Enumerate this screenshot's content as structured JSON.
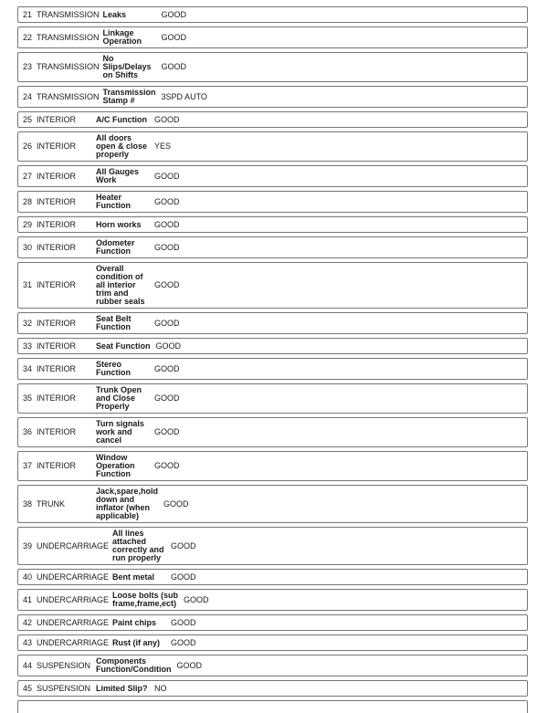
{
  "colors": {
    "border": "#767676",
    "text": "#1a1a1a",
    "background": "#ffffff"
  },
  "table": {
    "rows": [
      {
        "num": "21",
        "category": "TRANSMISSION",
        "item_lines": [
          "Leaks"
        ],
        "value": "GOOD"
      },
      {
        "num": "22",
        "category": "TRANSMISSION",
        "item_lines": [
          "Linkage",
          "Operation"
        ],
        "value": "GOOD"
      },
      {
        "num": "23",
        "category": "TRANSMISSION",
        "item_lines": [
          "No",
          "Slips/Delays",
          "on Shifts"
        ],
        "value": "GOOD"
      },
      {
        "num": "24",
        "category": "TRANSMISSION",
        "item_lines": [
          "Transmission",
          "Stamp #"
        ],
        "value": "3SPD AUTO"
      },
      {
        "num": "25",
        "category": "INTERIOR",
        "item_lines": [
          "A/C Function"
        ],
        "value": "GOOD"
      },
      {
        "num": "26",
        "category": "INTERIOR",
        "item_lines": [
          "All doors",
          "open & close",
          "properly"
        ],
        "value": "YES"
      },
      {
        "num": "27",
        "category": "INTERIOR",
        "item_lines": [
          "All Gauges",
          "Work"
        ],
        "value": "GOOD"
      },
      {
        "num": "28",
        "category": "INTERIOR",
        "item_lines": [
          "Heater",
          "Function"
        ],
        "value": "GOOD"
      },
      {
        "num": "29",
        "category": "INTERIOR",
        "item_lines": [
          "Horn works"
        ],
        "value": "GOOD"
      },
      {
        "num": "30",
        "category": "INTERIOR",
        "item_lines": [
          "Odometer",
          "Function"
        ],
        "value": "GOOD"
      },
      {
        "num": "31",
        "category": "INTERIOR",
        "item_lines": [
          "Overall",
          "condition of",
          "all interior",
          "trim and",
          "rubber seals"
        ],
        "value": "GOOD"
      },
      {
        "num": "32",
        "category": "INTERIOR",
        "item_lines": [
          "Seat Belt",
          "Function"
        ],
        "value": "GOOD"
      },
      {
        "num": "33",
        "category": "INTERIOR",
        "item_lines": [
          "Seat Function"
        ],
        "value": "GOOD"
      },
      {
        "num": "34",
        "category": "INTERIOR",
        "item_lines": [
          "Stereo",
          "Function"
        ],
        "value": "GOOD"
      },
      {
        "num": "35",
        "category": "INTERIOR",
        "item_lines": [
          "Trunk Open",
          "and Close",
          "Properly"
        ],
        "value": "GOOD"
      },
      {
        "num": "36",
        "category": "INTERIOR",
        "item_lines": [
          "Turn signals",
          "work and",
          "cancel"
        ],
        "value": "GOOD"
      },
      {
        "num": "37",
        "category": "INTERIOR",
        "item_lines": [
          "Window",
          "Operation",
          "Function"
        ],
        "value": "GOOD"
      },
      {
        "num": "38",
        "category": "TRUNK",
        "item_lines": [
          "Jack,spare,hold",
          "down and",
          "inflator (when",
          "applicable)"
        ],
        "value": "GOOD"
      },
      {
        "num": "39",
        "category": "UNDERCARRIAGE",
        "item_lines": [
          "All lines",
          "attached",
          "correctly and",
          "run properly"
        ],
        "value": "GOOD"
      },
      {
        "num": "40",
        "category": "UNDERCARRIAGE",
        "item_lines": [
          "Bent metal"
        ],
        "value": "GOOD"
      },
      {
        "num": "41",
        "category": "UNDERCARRIAGE",
        "item_lines": [
          "Loose bolts (sub",
          "frame,frame,ect)"
        ],
        "value": "GOOD"
      },
      {
        "num": "42",
        "category": "UNDERCARRIAGE",
        "item_lines": [
          "Paint chips"
        ],
        "value": "GOOD"
      },
      {
        "num": "43",
        "category": "UNDERCARRIAGE",
        "item_lines": [
          "Rust (if any)"
        ],
        "value": "GOOD"
      },
      {
        "num": "44",
        "category": "SUSPENSION",
        "item_lines": [
          "Components",
          "Function/Condition"
        ],
        "value": "GOOD"
      },
      {
        "num": "45",
        "category": "SUSPENSION",
        "item_lines": [
          "Limited Slip?"
        ],
        "value": "NO"
      }
    ],
    "has_partial_next_row": true
  }
}
